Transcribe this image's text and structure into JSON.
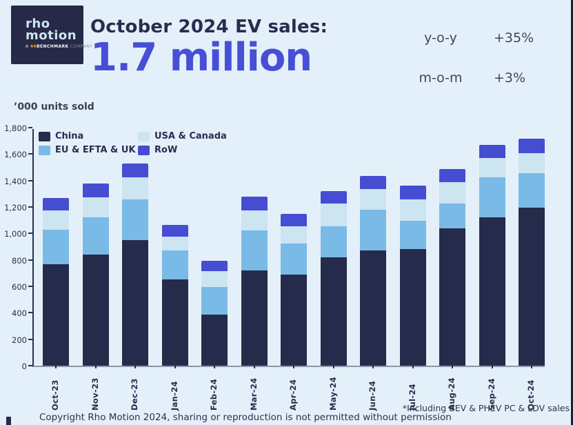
{
  "logo": {
    "line1": "rho",
    "line2": "motion",
    "tag_prefix": "A ",
    "tag_number": "44",
    "tag_bold": "BENCHMARK",
    "tag_dim": " COMPANY"
  },
  "header": {
    "title": "October 2024 EV sales:",
    "headline": "1.7 million",
    "stats": [
      {
        "label": "y-o-y",
        "value": "+35%"
      },
      {
        "label": "m-o-m",
        "value": "+3%"
      }
    ]
  },
  "chart_data": {
    "type": "bar",
    "stacked": true,
    "title": "October 2024 EV sales",
    "units_label": "’000 units sold",
    "categories": [
      "Oct-23",
      "Nov-23",
      "Dec-23",
      "Jan-24",
      "Feb-24",
      "Mar-24",
      "Apr-24",
      "May-24",
      "Jun-24",
      "Jul-24",
      "Aug-24",
      "Sep-24",
      "Oct-24"
    ],
    "series": [
      {
        "name": "China",
        "color": "#252b4a",
        "values": [
          768,
          840,
          948,
          653,
          388,
          718,
          690,
          818,
          870,
          880,
          1037,
          1120,
          1193
        ]
      },
      {
        "name": "EU & EFTA & UK",
        "color": "#7abae6",
        "values": [
          262,
          283,
          308,
          218,
          205,
          305,
          236,
          236,
          310,
          215,
          191,
          306,
          263
        ]
      },
      {
        "name": "USA & Canada",
        "color": "#cde4f1",
        "values": [
          143,
          151,
          167,
          107,
          121,
          152,
          126,
          170,
          155,
          162,
          160,
          144,
          153
        ]
      },
      {
        "name": "RoW",
        "color": "#454dd3",
        "values": [
          95,
          105,
          107,
          86,
          79,
          106,
          94,
          96,
          99,
          104,
          101,
          100,
          109
        ]
      }
    ],
    "totals": [
      1268,
      1379,
      1530,
      1064,
      793,
      1281,
      1146,
      1320,
      1434,
      1361,
      1489,
      1670,
      1718
    ],
    "ylim": [
      0,
      1800
    ],
    "ytick_step": 200,
    "grid": false,
    "legend_position": "top-left-inside",
    "legend_display_order": [
      0,
      2,
      1,
      3
    ]
  },
  "footer": {
    "note": "*Including BEV & PHEV PC & LDV sales",
    "copyright": "Copyright Rho Motion 2024, sharing or reproduction is not permitted without permission"
  },
  "accent_colors": {
    "background": "#e4f0f9",
    "headline_blue": "#474fd6",
    "navy": "#272d4f",
    "logo_orange": "#eea437"
  }
}
